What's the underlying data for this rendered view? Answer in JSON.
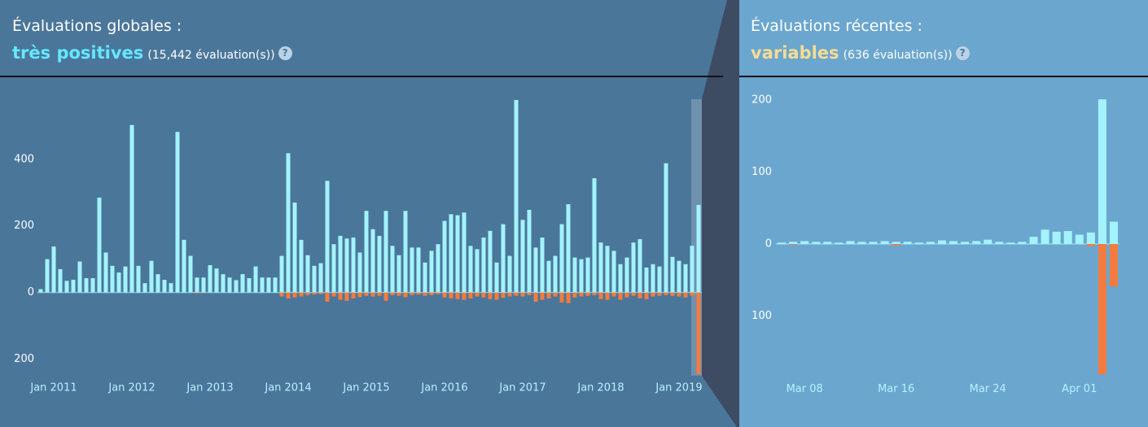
{
  "chart_data": [
    {
      "type": "bar",
      "title": "Évaluations globales :",
      "rating": "très positives",
      "rating_color": "#66e6ff",
      "subtitle": "(15,442 évaluation(s))",
      "help": "?",
      "categories": [
        null,
        null,
        "Jan 2011",
        null,
        null,
        null,
        null,
        null,
        null,
        null,
        null,
        null,
        null,
        null,
        "Jan 2012",
        null,
        null,
        null,
        null,
        null,
        null,
        null,
        null,
        null,
        null,
        null,
        "Jan 2013",
        null,
        null,
        null,
        null,
        null,
        null,
        null,
        null,
        null,
        null,
        null,
        "Jan 2014",
        null,
        null,
        null,
        null,
        null,
        null,
        null,
        null,
        null,
        null,
        null,
        "Jan 2015",
        null,
        null,
        null,
        null,
        null,
        null,
        null,
        null,
        null,
        null,
        null,
        "Jan 2016",
        null,
        null,
        null,
        null,
        null,
        null,
        null,
        null,
        null,
        null,
        null,
        "Jan 2017",
        null,
        null,
        null,
        null,
        null,
        null,
        null,
        null,
        null,
        null,
        null,
        "Jan 2018",
        null,
        null,
        null,
        null,
        null,
        null,
        null,
        null,
        null,
        null,
        null,
        "Jan 2019",
        null,
        null,
        null
      ],
      "series": [
        {
          "color": "#a3f3fd",
          "values": [
            10,
            100,
            138,
            70,
            35,
            38,
            93,
            43,
            43,
            285,
            120,
            80,
            60,
            78,
            503,
            80,
            28,
            95,
            55,
            38,
            28,
            482,
            158,
            110,
            45,
            45,
            82,
            72,
            55,
            45,
            37,
            55,
            43,
            78,
            45,
            45,
            45,
            110,
            418,
            270,
            158,
            112,
            80,
            88,
            335,
            145,
            170,
            162,
            165,
            120,
            245,
            190,
            170,
            245,
            140,
            112,
            245,
            135,
            135,
            90,
            125,
            145,
            215,
            235,
            232,
            240,
            140,
            130,
            165,
            185,
            90,
            205,
            110,
            578,
            218,
            248,
            135,
            165,
            95,
            110,
            205,
            265,
            105,
            100,
            105,
            343,
            150,
            140,
            125,
            85,
            105,
            150,
            160,
            75,
            85,
            78,
            388,
            107,
            95,
            85,
            140,
            263
          ]
        },
        {
          "color": "#f47b3f",
          "values": [
            0,
            0,
            0,
            0,
            0,
            0,
            0,
            0,
            0,
            0,
            0,
            0,
            0,
            0,
            0,
            0,
            0,
            0,
            0,
            0,
            0,
            0,
            0,
            0,
            -3,
            0,
            0,
            0,
            0,
            0,
            0,
            0,
            0,
            0,
            0,
            0,
            0,
            -12,
            -18,
            -15,
            -12,
            -8,
            -6,
            -5,
            -28,
            -12,
            -22,
            -25,
            -18,
            -14,
            -10,
            -12,
            -10,
            -25,
            -8,
            -10,
            -14,
            -8,
            -6,
            -10,
            -8,
            -5,
            -15,
            -18,
            -20,
            -22,
            -18,
            -12,
            -15,
            -20,
            -22,
            -16,
            -12,
            -10,
            -12,
            -8,
            -28,
            -22,
            -18,
            -12,
            -30,
            -32,
            -15,
            -12,
            -10,
            -8,
            -20,
            -22,
            -12,
            -22,
            -15,
            -10,
            -18,
            -20,
            -12,
            -10,
            -8,
            -10,
            -12,
            -15,
            -10,
            -245
          ]
        }
      ],
      "ylim": [
        -250,
        590
      ],
      "yticks": [
        {
          "value": -200,
          "label": "200"
        },
        0,
        200,
        400
      ]
    },
    {
      "type": "bar",
      "title": "Évaluations récentes :",
      "rating": "variables",
      "rating_color": "#f7dc94",
      "subtitle": "(636 évaluation(s))",
      "help": "?",
      "categories": [
        null,
        null,
        "Mar 08",
        null,
        null,
        null,
        null,
        null,
        null,
        null,
        "Mar 16",
        null,
        null,
        null,
        null,
        null,
        null,
        null,
        "Mar 24",
        null,
        null,
        null,
        null,
        null,
        null,
        null,
        "Apr 01",
        null,
        null,
        null
      ],
      "series": [
        {
          "color": "#a3f3fd",
          "values": [
            2,
            3,
            4,
            3,
            3,
            2,
            4,
            3,
            3,
            4,
            3,
            3,
            2,
            3,
            5,
            4,
            3,
            4,
            6,
            3,
            2,
            3,
            10,
            20,
            17,
            18,
            13,
            16,
            201,
            31
          ]
        },
        {
          "color": "#f47b3f",
          "values": [
            0,
            -1,
            0,
            0,
            0,
            0,
            0,
            0,
            0,
            0,
            -2,
            0,
            0,
            0,
            0,
            0,
            0,
            0,
            0,
            0,
            0,
            0,
            0,
            0,
            0,
            0,
            0,
            -3,
            -181,
            -59
          ]
        }
      ],
      "ylim": [
        -185,
        205
      ],
      "yticks": [
        {
          "value": -100,
          "label": "100"
        },
        0,
        100,
        200
      ]
    }
  ]
}
